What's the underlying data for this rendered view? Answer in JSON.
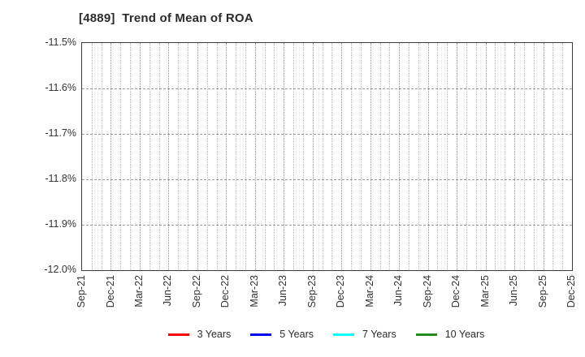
{
  "chart_data": {
    "type": "line",
    "title": "[4889]  Trend of Mean of ROA",
    "xlabel": "",
    "ylabel": "",
    "ylim": [
      -12.0,
      -11.5
    ],
    "y_tick_labels": [
      "-11.5%",
      "-11.6%",
      "-11.7%",
      "-11.8%",
      "-11.9%",
      "-12.0%"
    ],
    "x_tick_labels": [
      "Sep-21",
      "Dec-21",
      "Mar-22",
      "Jun-22",
      "Sep-22",
      "Dec-22",
      "Mar-23",
      "Jun-23",
      "Sep-23",
      "Dec-23",
      "Mar-24",
      "Jun-24",
      "Sep-24",
      "Dec-24",
      "Mar-25",
      "Jun-25",
      "Sep-25",
      "Dec-25"
    ],
    "grid": true,
    "plot_is_empty": true,
    "legend_position": "bottom",
    "series": [
      {
        "name": "3 Years",
        "color": "#ff0000",
        "values": []
      },
      {
        "name": "5 Years",
        "color": "#0000ff",
        "values": []
      },
      {
        "name": "7 Years",
        "color": "#00ffff",
        "values": []
      },
      {
        "name": "10 Years",
        "color": "#228b22",
        "values": []
      }
    ],
    "colors": {
      "title_text": "#2b2b2b",
      "axis_text": "#333333",
      "plot_border": "#3c3c3c",
      "grid_minor": "#bdbdbd",
      "grid_major": "#9b9b9b",
      "background": "#ffffff"
    }
  }
}
